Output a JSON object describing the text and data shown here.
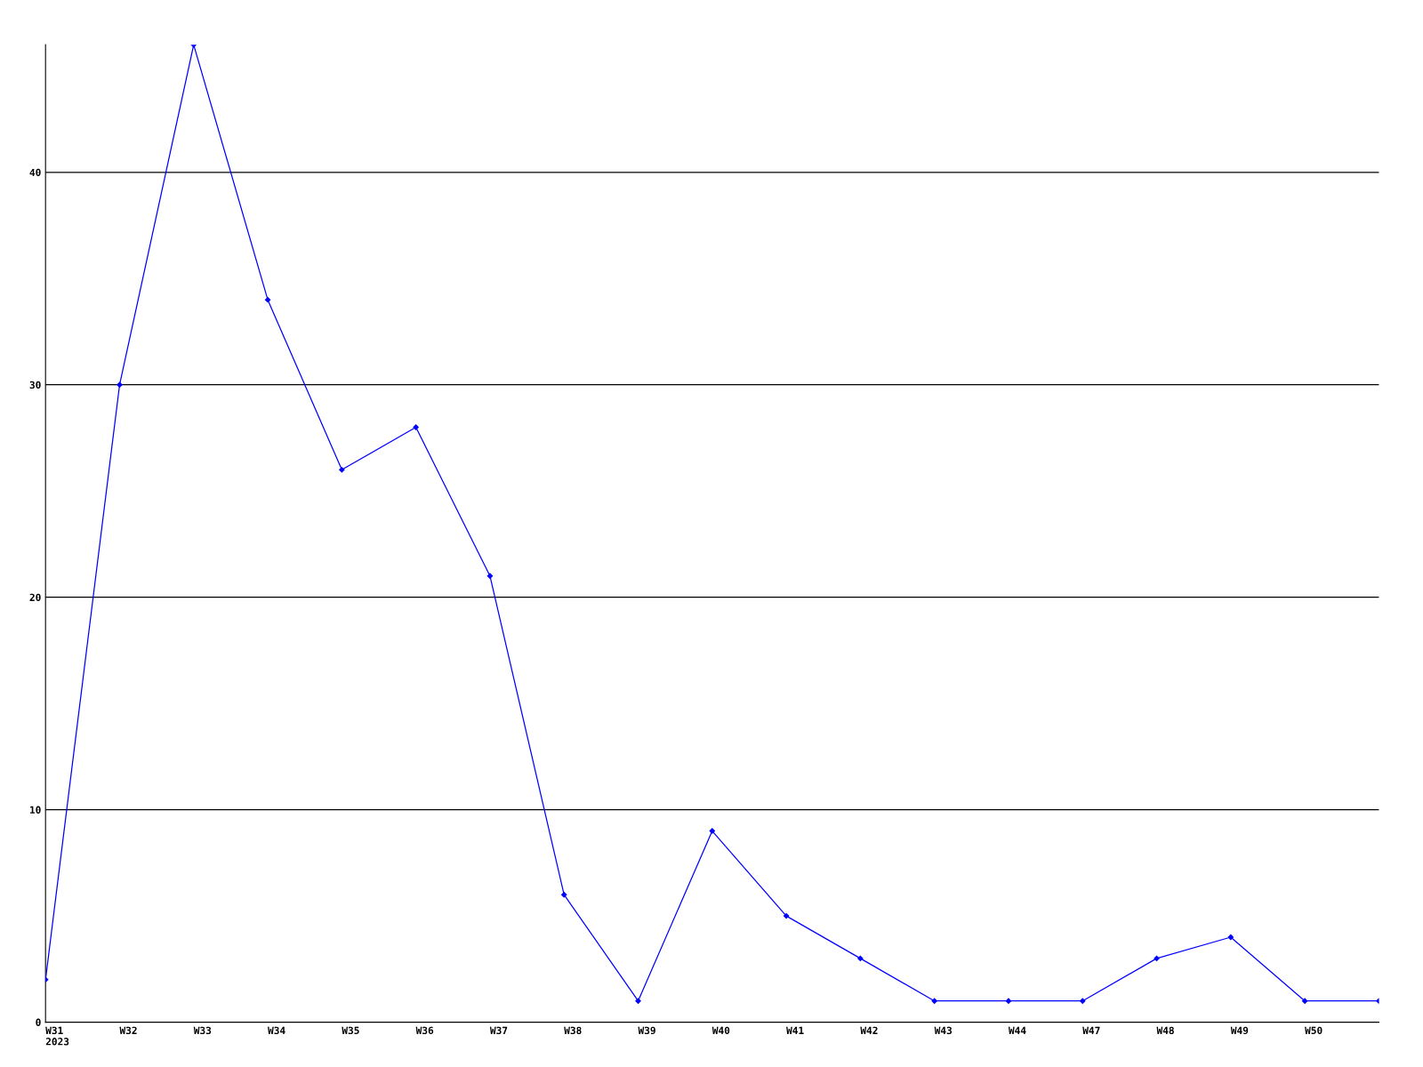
{
  "chart_data": {
    "type": "line",
    "categories": [
      "W31\n2023",
      "W32",
      "W33",
      "W34",
      "W35",
      "W36",
      "W37",
      "W38",
      "W39",
      "W40",
      "W41",
      "W42",
      "W43",
      "W44",
      "W47",
      "W48",
      "W49",
      "W50",
      null
    ],
    "series": [
      {
        "color": "#0000ff",
        "values": [
          2,
          30,
          46,
          34,
          26,
          28,
          21,
          6,
          1,
          9,
          5,
          3,
          1,
          1,
          1,
          3,
          4,
          1,
          1
        ]
      }
    ],
    "ylim": [
      0,
      46
    ],
    "yticks": [
      0,
      10,
      20,
      30,
      40
    ],
    "grid": "y",
    "marker": "diamond",
    "line_style": "solid",
    "legend": false
  }
}
